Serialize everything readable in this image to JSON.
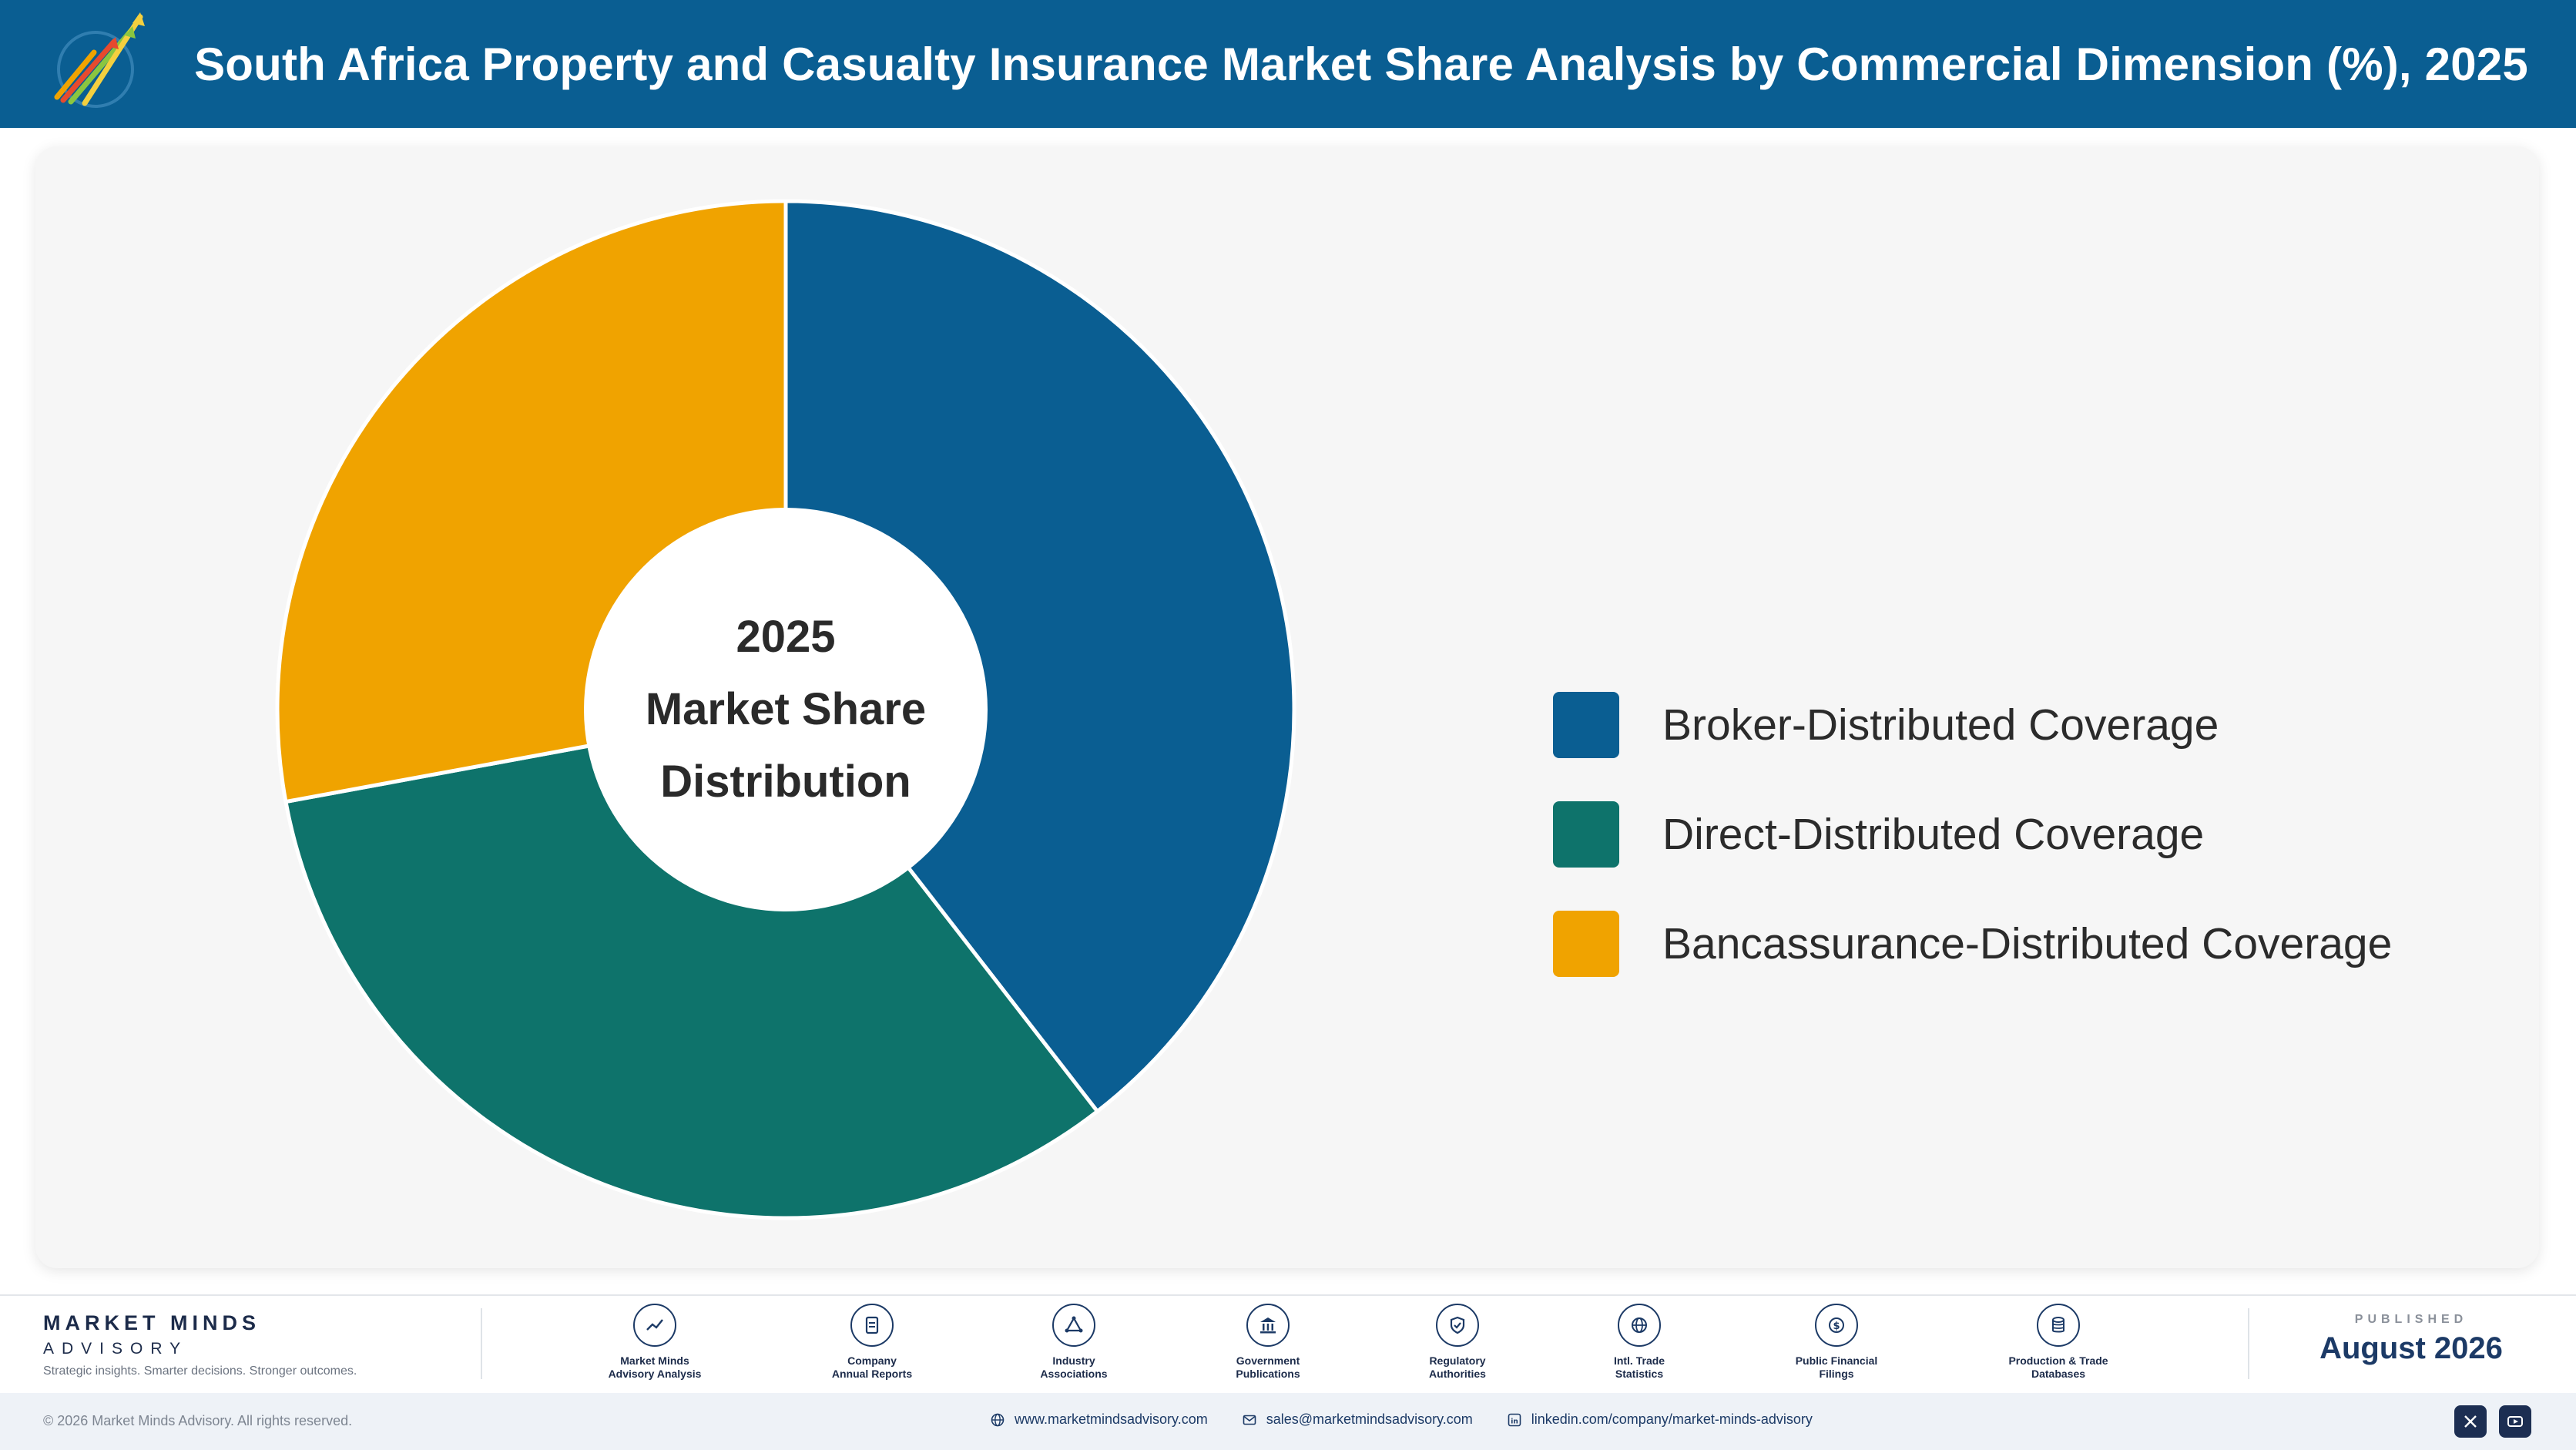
{
  "header": {
    "title": "South Africa Property and Casualty Insurance Market Share Analysis by Commercial Dimension (%), 2025",
    "logo_icon": "rising-arrows-logo-icon"
  },
  "chart_data": {
    "type": "pie",
    "donut": true,
    "title": "South Africa Property and Casualty Insurance Market Share Analysis by Commercial Dimension (%), 2025",
    "center_label": [
      "2025",
      "Market Share",
      "Distribution"
    ],
    "categories": [
      "Broker-Distributed Coverage",
      "Direct-Distributed Coverage",
      "Bancassurance-Distributed Coverage"
    ],
    "values": [
      39.5,
      32.6,
      27.9
    ],
    "colors": [
      "#0a5e92",
      "#0e736b",
      "#f0a300"
    ],
    "legend_placement": "right",
    "data_labels": false
  },
  "footer": {
    "brand_name": "MARKET MINDS",
    "brand_sub": "ADVISORY",
    "tagline": "Strategic insights. Smarter decisions. Stronger outcomes.",
    "sources": [
      {
        "line1": "Market Minds",
        "line2": "Advisory Analysis",
        "icon": "trend-chart-icon"
      },
      {
        "line1": "Company",
        "line2": "Annual Reports",
        "icon": "document-icon"
      },
      {
        "line1": "Industry",
        "line2": "Associations",
        "icon": "network-icon"
      },
      {
        "line1": "Government",
        "line2": "Publications",
        "icon": "government-building-icon"
      },
      {
        "line1": "Regulatory",
        "line2": "Authorities",
        "icon": "shield-check-icon"
      },
      {
        "line1": "Intl. Trade",
        "line2": "Statistics",
        "icon": "globe-icon"
      },
      {
        "line1": "Public Financial",
        "line2": "Filings",
        "icon": "dollar-coin-icon"
      },
      {
        "line1": "Production & Trade",
        "line2": "Databases",
        "icon": "database-icon"
      }
    ],
    "published_label": "PUBLISHED",
    "published_date": "August 2026",
    "copyright": "© 2026 Market Minds Advisory. All rights reserved.",
    "website": "www.marketmindsadvisory.com",
    "email": "sales@marketmindsadvisory.com",
    "linkedin": "linkedin.com/company/market-minds-advisory"
  }
}
